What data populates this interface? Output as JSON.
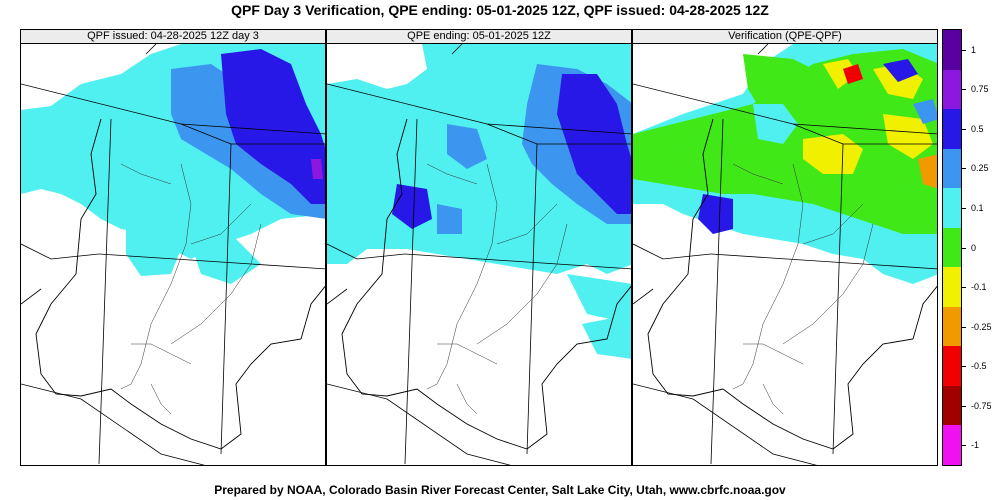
{
  "title": "QPF Day 3 Verification, QPE ending: 05-01-2025 12Z, QPF issued: 04-28-2025 12Z",
  "footer": "Prepared by NOAA, Colorado Basin River Forecast Center, Salt Lake City, Utah, www.cbrfc.noaa.gov",
  "panels": [
    {
      "label": "QPF issued: 04-28-2025 12Z day 3"
    },
    {
      "label": "QPE ending: 05-01-2025 12Z"
    },
    {
      "label": "Verification (QPE-QPF)"
    }
  ],
  "colorbar": {
    "labels": [
      "1",
      "0.75",
      "0.5",
      "0.25",
      "0.1",
      "0",
      "-0.1",
      "-0.25",
      "-0.5",
      "-0.75",
      "-1"
    ],
    "colors": [
      "#5a00a0",
      "#8c18e0",
      "#2818e8",
      "#3c96f0",
      "#50f0f0",
      "#40e818",
      "#f0f000",
      "#f09a00",
      "#f00000",
      "#a00000",
      "#f010f0"
    ]
  }
}
